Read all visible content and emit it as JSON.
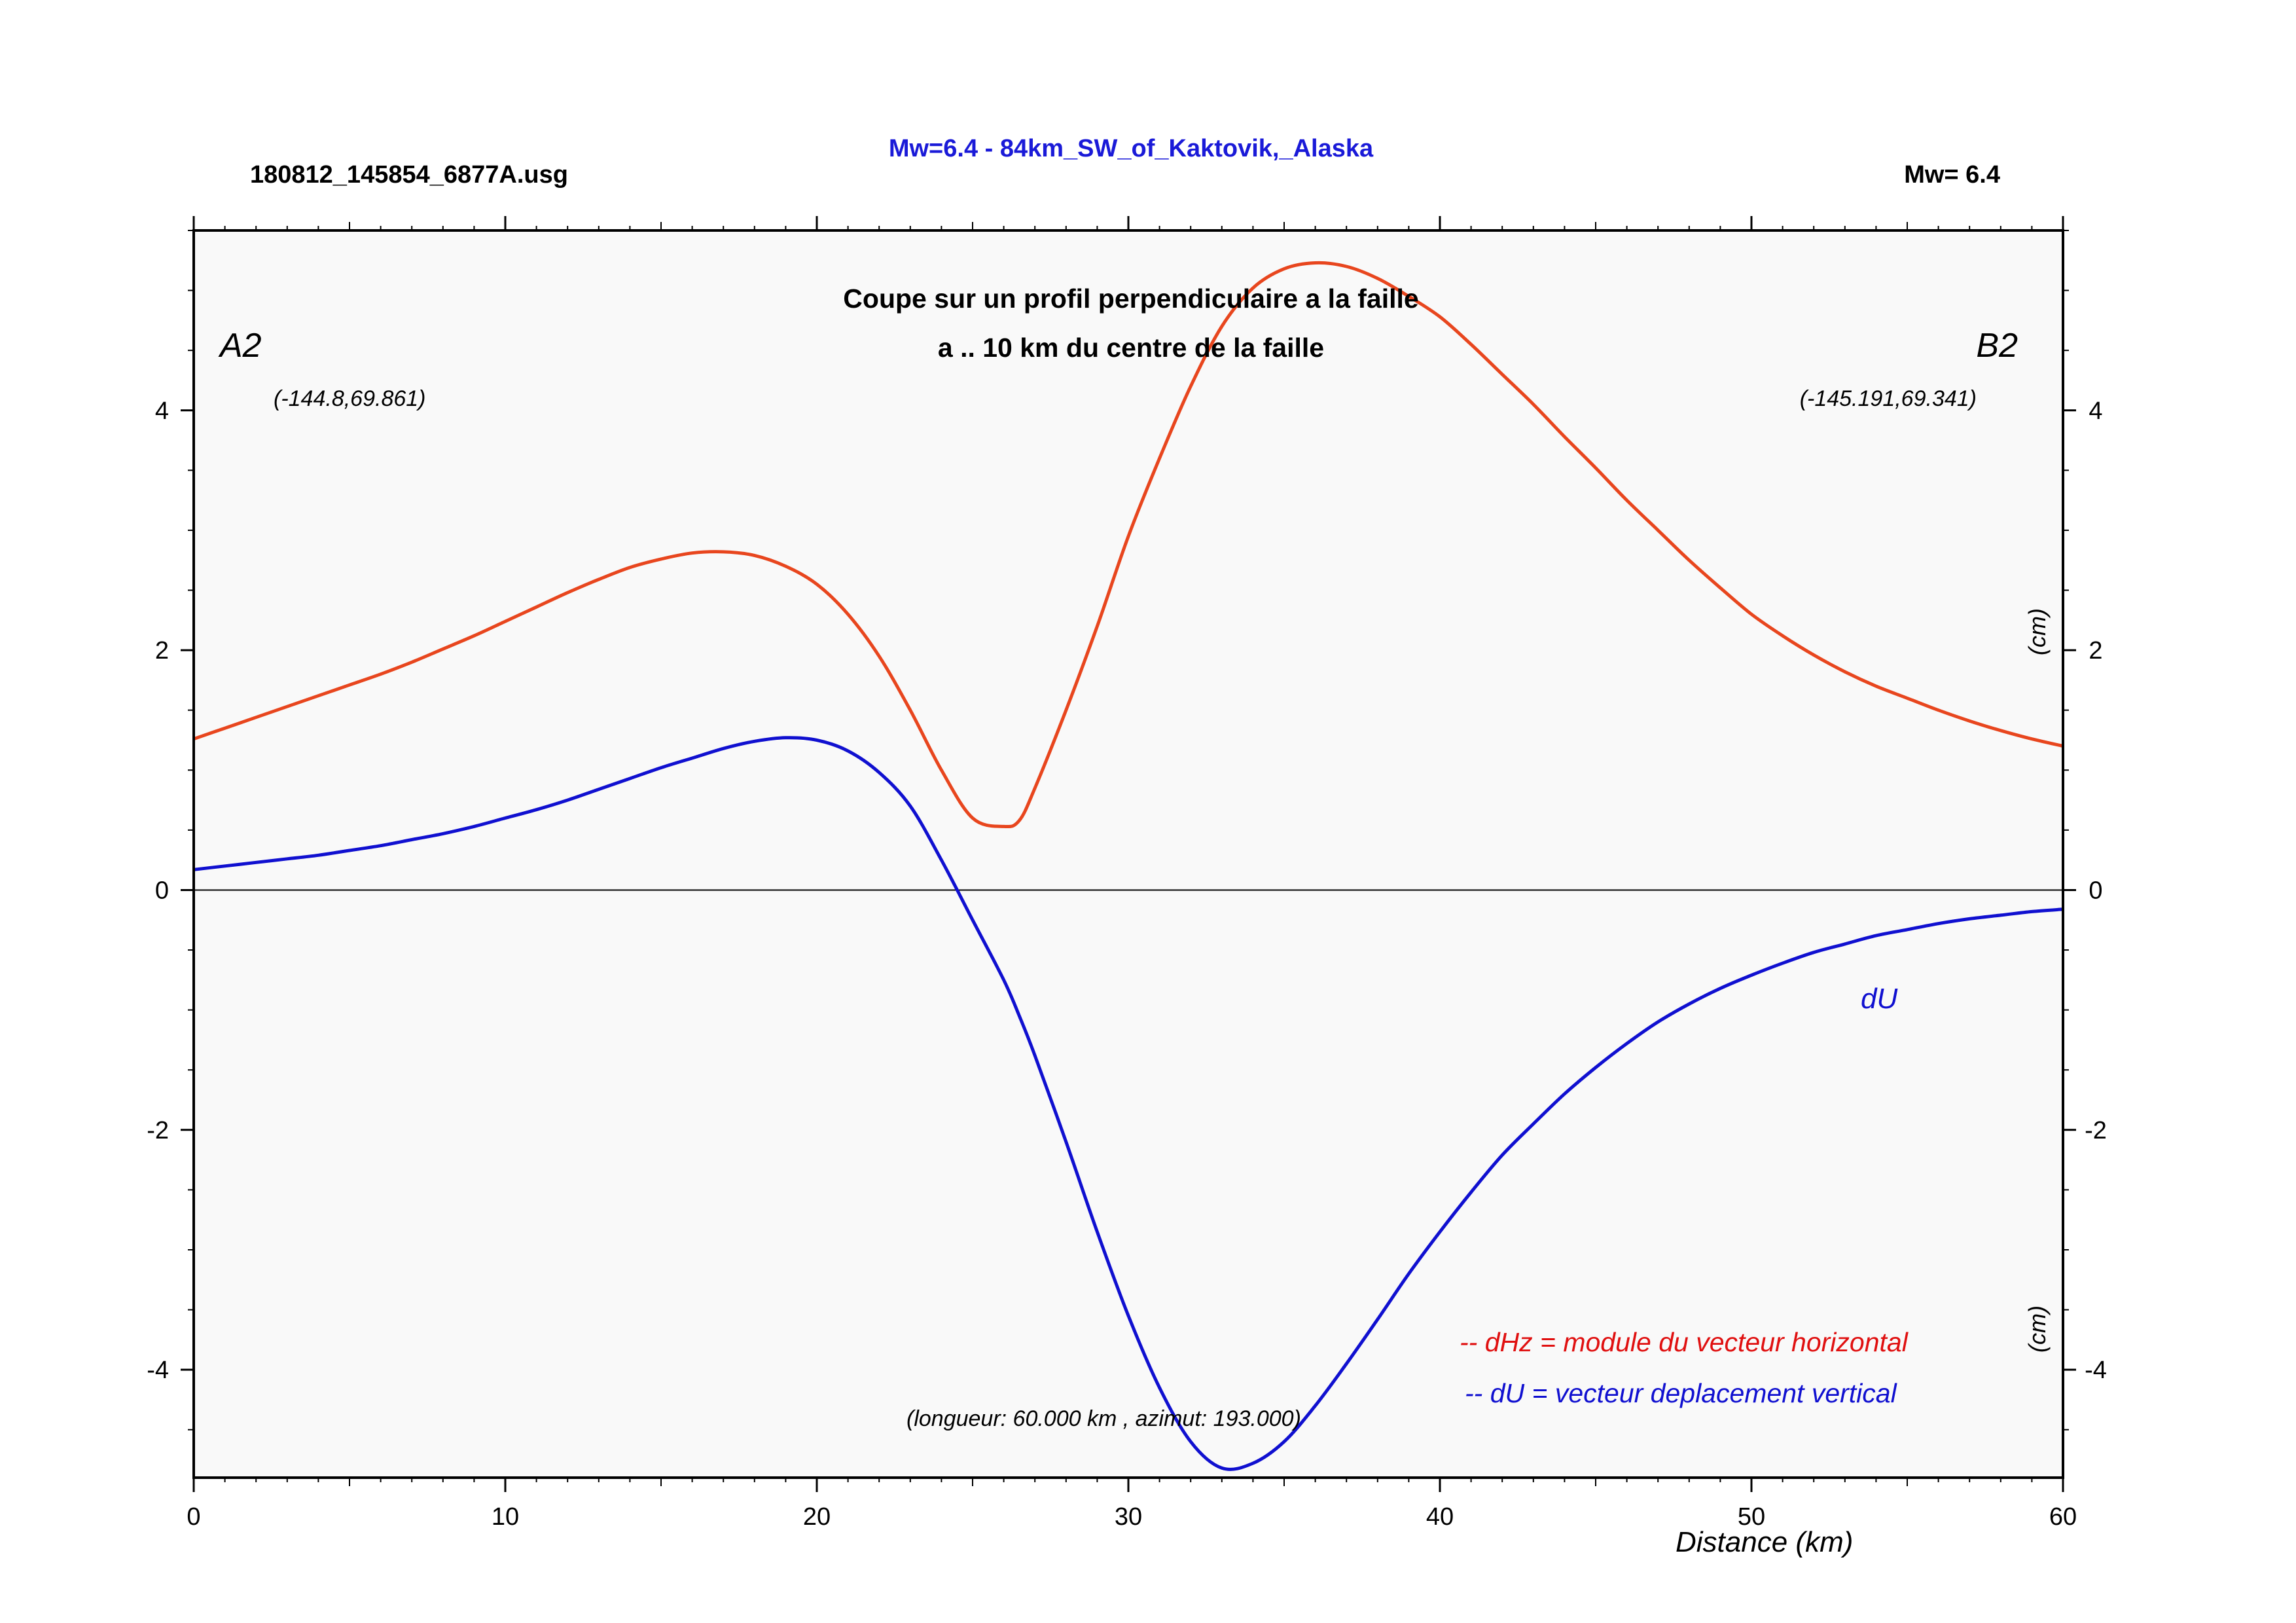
{
  "header": {
    "file": "180812_145854_6877A.usg",
    "title": "Mw=6.4 - 84km_SW_of_Kaktovik,_Alaska",
    "magnitude": "Mw= 6.4"
  },
  "annotations": {
    "subtitle_line1": "Coupe sur un profil perpendiculaire a la faille",
    "subtitle_line2": "a .. 10 km du centre de la faille",
    "start_label": "A2",
    "end_label": "B2",
    "start_coords": "(-144.8,69.861)",
    "end_coords": "(-145.191,69.341)",
    "du_label": "dU",
    "legend_dhz": "-- dHz = module du vecteur horizontal",
    "legend_du": "-- dU =  vecteur deplacement vertical",
    "profile_info": "(longueur: 60.000 km , azimut: 193.000)",
    "unit_right_top": "(cm)",
    "unit_right_bottom": "(cm)"
  },
  "colors": {
    "dhz": "#e8461e",
    "du": "#1010d0",
    "title": "#1a1ad8",
    "legend_dhz": "#e01010",
    "legend_du": "#1010d0",
    "plot_bg": "#f9f9f9"
  },
  "chart_data": {
    "type": "line",
    "xlabel": "Distance (km)",
    "ylabel": "",
    "xlim": [
      0,
      60
    ],
    "ylim": [
      -4.9,
      5.5
    ],
    "x_ticks": [
      0,
      10,
      20,
      30,
      40,
      50,
      60
    ],
    "y_ticks": [
      -4,
      -2,
      0,
      2,
      4
    ],
    "x": [
      0,
      1,
      2,
      3,
      4,
      5,
      6,
      7,
      8,
      9,
      10,
      11,
      12,
      13,
      14,
      15,
      16,
      17,
      18,
      19,
      20,
      21,
      22,
      23,
      24,
      25,
      26,
      26.5,
      27,
      28,
      29,
      30,
      31,
      32,
      33,
      34,
      35,
      36,
      37,
      38,
      39,
      40,
      41,
      42,
      43,
      44,
      45,
      46,
      47,
      48,
      49,
      50,
      51,
      52,
      53,
      54,
      55,
      56,
      57,
      58,
      59,
      60
    ],
    "series": [
      {
        "name": "dHz",
        "values": [
          1.26,
          1.35,
          1.44,
          1.53,
          1.62,
          1.71,
          1.8,
          1.9,
          2.01,
          2.12,
          2.24,
          2.36,
          2.48,
          2.59,
          2.69,
          2.76,
          2.81,
          2.82,
          2.79,
          2.7,
          2.55,
          2.3,
          1.95,
          1.5,
          1.0,
          0.6,
          0.53,
          0.58,
          0.85,
          1.5,
          2.2,
          2.95,
          3.6,
          4.2,
          4.7,
          5.02,
          5.18,
          5.23,
          5.2,
          5.1,
          4.95,
          4.78,
          4.55,
          4.3,
          4.05,
          3.78,
          3.52,
          3.25,
          3.0,
          2.75,
          2.52,
          2.3,
          2.12,
          1.96,
          1.82,
          1.7,
          1.6,
          1.5,
          1.41,
          1.33,
          1.26,
          1.2
        ]
      },
      {
        "name": "dU",
        "values": [
          0.17,
          0.2,
          0.23,
          0.26,
          0.29,
          0.33,
          0.37,
          0.42,
          0.47,
          0.53,
          0.6,
          0.67,
          0.75,
          0.84,
          0.93,
          1.02,
          1.1,
          1.18,
          1.24,
          1.27,
          1.25,
          1.16,
          0.98,
          0.7,
          0.25,
          -0.25,
          -0.75,
          -1.05,
          -1.38,
          -2.1,
          -2.85,
          -3.55,
          -4.15,
          -4.6,
          -4.82,
          -4.78,
          -4.6,
          -4.3,
          -3.95,
          -3.58,
          -3.2,
          -2.85,
          -2.52,
          -2.21,
          -1.95,
          -1.7,
          -1.48,
          -1.28,
          -1.1,
          -0.95,
          -0.82,
          -0.71,
          -0.61,
          -0.52,
          -0.45,
          -0.38,
          -0.33,
          -0.28,
          -0.24,
          -0.21,
          -0.18,
          -0.16
        ]
      }
    ]
  }
}
